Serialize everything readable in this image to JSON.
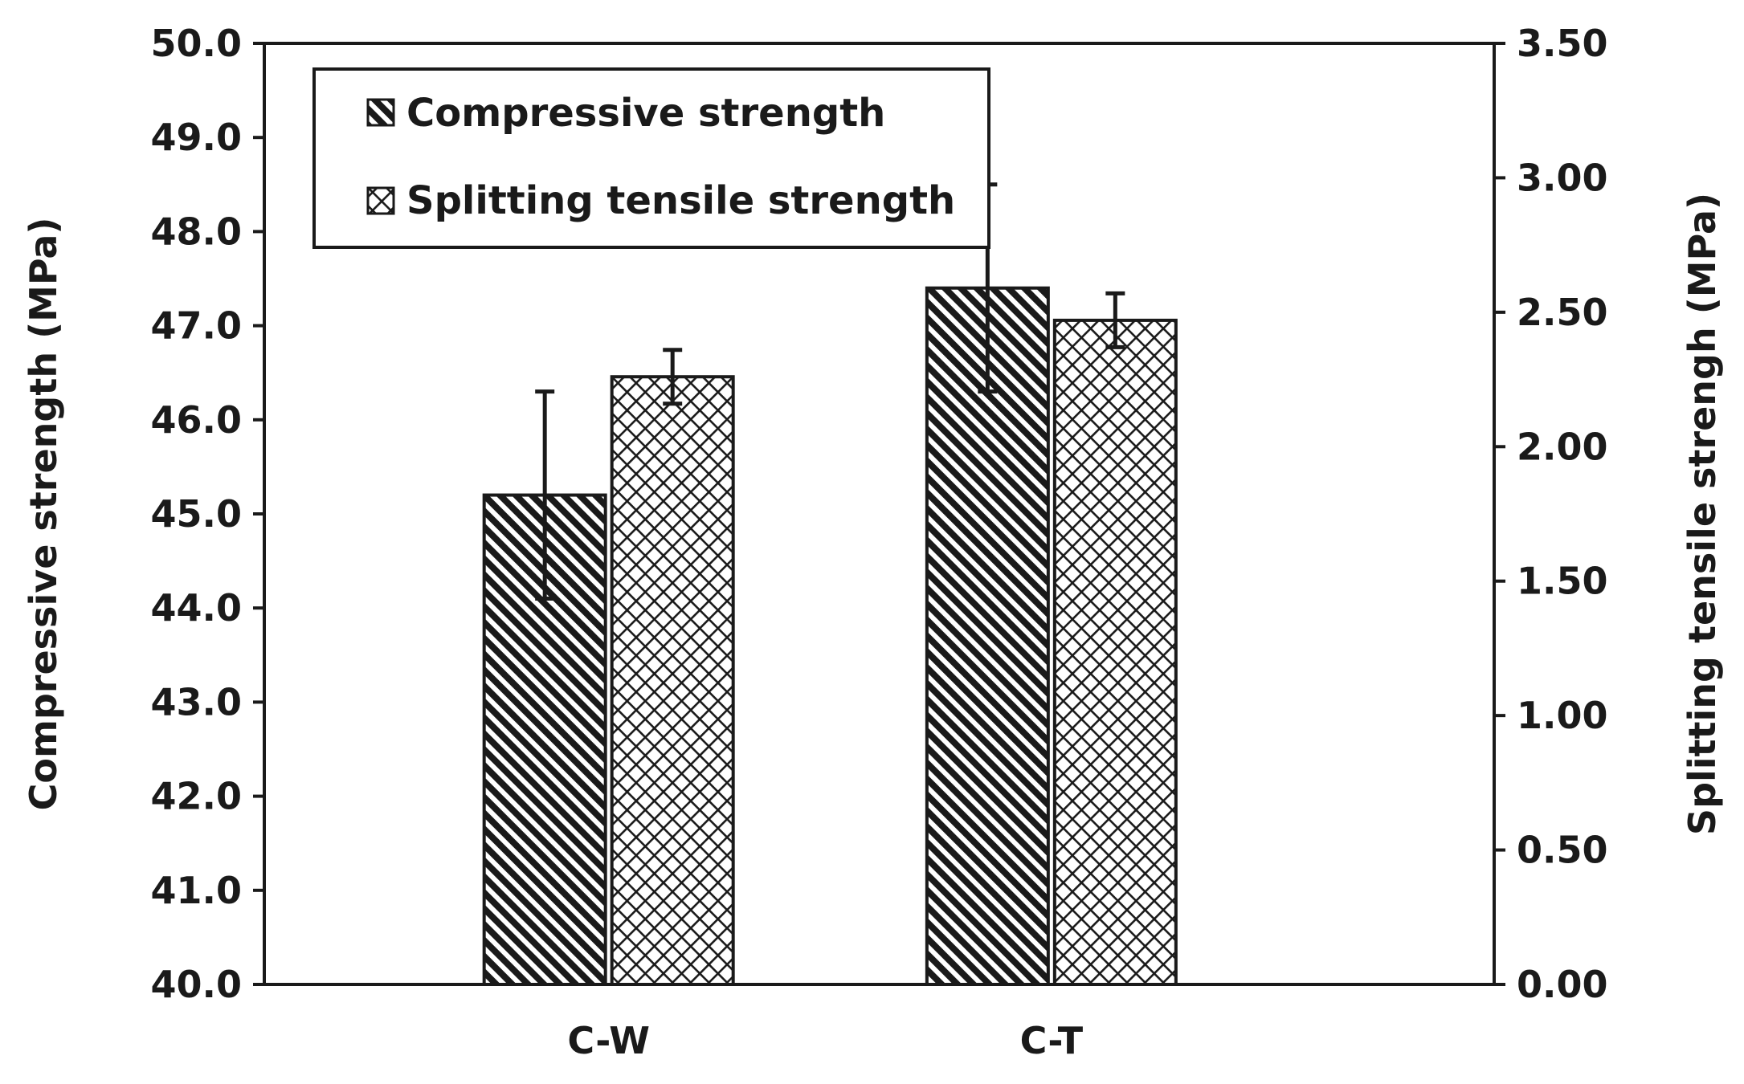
{
  "chart_data": {
    "type": "bar",
    "title": "",
    "xlabel": "",
    "categories": [
      "C-W",
      "C-T"
    ],
    "y_left": {
      "label": "Compressive strength (MPa)",
      "range": [
        40.0,
        50.0
      ],
      "ticks": [
        "40.0",
        "41.0",
        "42.0",
        "43.0",
        "44.0",
        "45.0",
        "46.0",
        "47.0",
        "48.0",
        "49.0",
        "50.0"
      ]
    },
    "y_right": {
      "label": "Splitting tensile strengh (MPa)",
      "range": [
        0.0,
        3.5
      ],
      "ticks": [
        "0.00",
        "0.50",
        "1.00",
        "1.50",
        "2.00",
        "2.50",
        "3.00",
        "3.50"
      ]
    },
    "series": [
      {
        "name": "Compressive strength",
        "axis": "left",
        "pattern": "diagonal-hatch",
        "values": [
          45.2,
          47.4
        ],
        "error": [
          1.1,
          1.1
        ]
      },
      {
        "name": "Splitting tensile strength",
        "axis": "right",
        "pattern": "crosshatch",
        "values": [
          2.26,
          2.47
        ],
        "error": [
          0.1,
          0.1
        ]
      }
    ],
    "legend": {
      "position": "top-left",
      "entries": [
        "Compressive strength",
        "Splitting tensile strength"
      ]
    },
    "grid": false,
    "colors": {
      "ink": "#1a1a1a",
      "background": "#ffffff"
    }
  }
}
